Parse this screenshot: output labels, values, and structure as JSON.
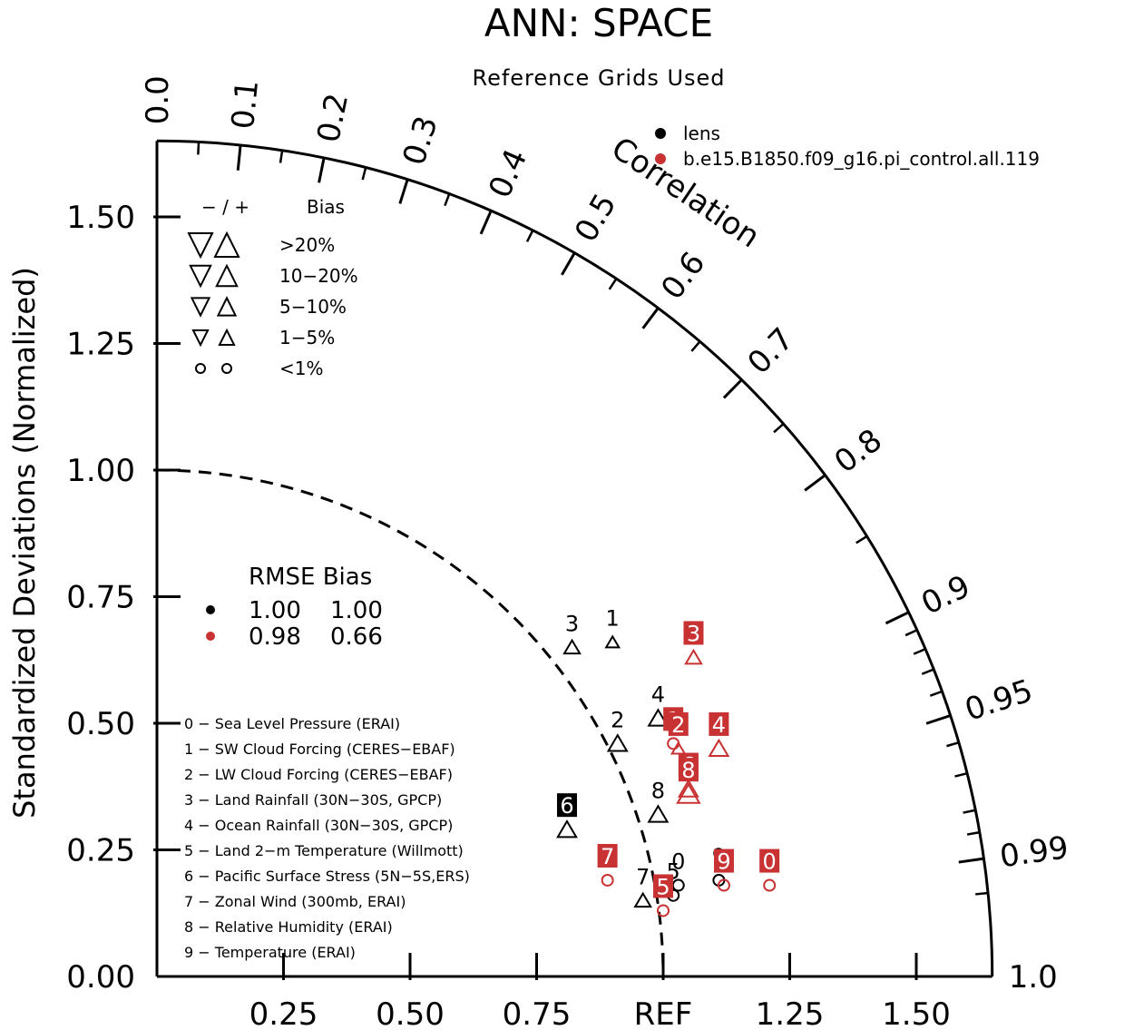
{
  "title": "ANN: SPACE",
  "subtitle": "Reference Grids Used",
  "y_axis_label": "Standardized Deviations (Normalized)",
  "correlation_label": "Correlation",
  "ref_label": "REF",
  "colors": {
    "lens": "#000000",
    "control": "#c83232"
  },
  "case_legend": [
    {
      "name": "lens",
      "color": "#000000"
    },
    {
      "name": "b.e15.B1850.f09_g16.pi_control.all.119",
      "color": "#c83232"
    }
  ],
  "bias_legend": {
    "header_signs": "−  /  +",
    "header_label": "Bias",
    "rows": [
      {
        "label": ">20%",
        "size": 1.0
      },
      {
        "label": "10−20%",
        "size": 0.8
      },
      {
        "label": "5−10%",
        "size": 0.62
      },
      {
        "label": "1−5%",
        "size": 0.45
      },
      {
        "label": "<1%",
        "size": 0.0
      }
    ]
  },
  "rmse_legend": {
    "header": "RMSE Bias",
    "rows": [
      {
        "color": "#000000",
        "rmse": "1.00",
        "bias": "1.00"
      },
      {
        "color": "#c83232",
        "rmse": "0.98",
        "bias": "0.66"
      }
    ]
  },
  "variable_list": [
    "0 − Sea Level Pressure (ERAI)",
    "1 − SW Cloud Forcing (CERES−EBAF)",
    "2 − LW Cloud Forcing (CERES−EBAF)",
    "3 − Land Rainfall (30N−30S, GPCP)",
    "4 − Ocean Rainfall (30N−30S, GPCP)",
    "5 − Land 2−m Temperature (Willmott)",
    "6 − Pacific Surface Stress (5N−5S,ERS)",
    "7 − Zonal Wind (300mb, ERAI)",
    "8 − Relative Humidity (ERAI)",
    "9 − Temperature (ERAI)"
  ],
  "chart_data": {
    "type": "scatter",
    "title": "ANN: SPACE",
    "subtitle": "Reference Grids Used",
    "ylabel": "Standardized Deviations (Normalized)",
    "xlabel": "REF",
    "std_max": 1.65,
    "std_ticks": [
      "0.00",
      "0.25",
      "0.50",
      "0.75",
      "1.00",
      "1.25",
      "1.50"
    ],
    "x_ticks": [
      "0.25",
      "0.50",
      "0.75",
      "REF",
      "1.25",
      "1.50"
    ],
    "x_tick_values": [
      0.25,
      0.5,
      0.75,
      1.0,
      1.25,
      1.5
    ],
    "corr_ticks": [
      "0.0",
      "0.1",
      "0.2",
      "0.3",
      "0.4",
      "0.5",
      "0.6",
      "0.7",
      "0.8",
      "0.9",
      "0.95",
      "0.99",
      "1.0"
    ],
    "corr_tick_values": [
      0.0,
      0.1,
      0.2,
      0.3,
      0.4,
      0.5,
      0.6,
      0.7,
      0.8,
      0.9,
      0.95,
      0.99,
      1.0
    ],
    "series": [
      {
        "name": "lens",
        "color": "#000000",
        "points": [
          {
            "id": "0",
            "x": 1.03,
            "y": 0.18,
            "marker": "circle",
            "boxed": false
          },
          {
            "id": "1",
            "x": 0.9,
            "y": 0.66,
            "marker": "triangle-up",
            "size": 0.45,
            "boxed": false
          },
          {
            "id": "2",
            "x": 0.91,
            "y": 0.46,
            "marker": "triangle-up",
            "size": 0.8,
            "boxed": false
          },
          {
            "id": "3",
            "x": 0.82,
            "y": 0.65,
            "marker": "triangle-up",
            "size": 0.62,
            "boxed": false
          },
          {
            "id": "4",
            "x": 0.99,
            "y": 0.51,
            "marker": "triangle-up",
            "size": 0.8,
            "boxed": false
          },
          {
            "id": "5",
            "x": 1.02,
            "y": 0.16,
            "marker": "circle",
            "boxed": false
          },
          {
            "id": "6",
            "x": 0.81,
            "y": 0.29,
            "marker": "triangle-up",
            "size": 0.8,
            "boxed": true
          },
          {
            "id": "7",
            "x": 0.96,
            "y": 0.15,
            "marker": "triangle-up",
            "size": 0.62,
            "boxed": false
          },
          {
            "id": "8",
            "x": 0.99,
            "y": 0.32,
            "marker": "triangle-up",
            "size": 0.8,
            "boxed": false
          },
          {
            "id": "9",
            "x": 1.11,
            "y": 0.19,
            "marker": "circle",
            "boxed": false
          }
        ]
      },
      {
        "name": "b.e15.B1850.f09_g16.pi_control.all.119",
        "color": "#c83232",
        "points": [
          {
            "id": "0",
            "x": 1.21,
            "y": 0.18,
            "marker": "circle",
            "boxed": true
          },
          {
            "id": "1",
            "x": 1.02,
            "y": 0.46,
            "marker": "circle",
            "boxed": true
          },
          {
            "id": "2",
            "x": 1.03,
            "y": 0.45,
            "marker": "triangle-up",
            "size": 0.45,
            "boxed": true
          },
          {
            "id": "3",
            "x": 1.06,
            "y": 0.63,
            "marker": "triangle-up",
            "size": 0.62,
            "boxed": true
          },
          {
            "id": "4",
            "x": 1.11,
            "y": 0.45,
            "marker": "triangle-up",
            "size": 0.8,
            "boxed": true
          },
          {
            "id": "5",
            "x": 1.0,
            "y": 0.13,
            "marker": "circle",
            "boxed": true
          },
          {
            "id": "6",
            "x": 1.05,
            "y": 0.37,
            "marker": "triangle-up",
            "size": 0.8,
            "boxed": true
          },
          {
            "id": "7",
            "x": 0.89,
            "y": 0.19,
            "marker": "circle",
            "boxed": true
          },
          {
            "id": "8",
            "x": 1.05,
            "y": 0.36,
            "marker": "triangle-up",
            "size": 1.0,
            "boxed": true
          },
          {
            "id": "9",
            "x": 1.12,
            "y": 0.18,
            "marker": "circle",
            "boxed": true
          }
        ]
      }
    ]
  }
}
